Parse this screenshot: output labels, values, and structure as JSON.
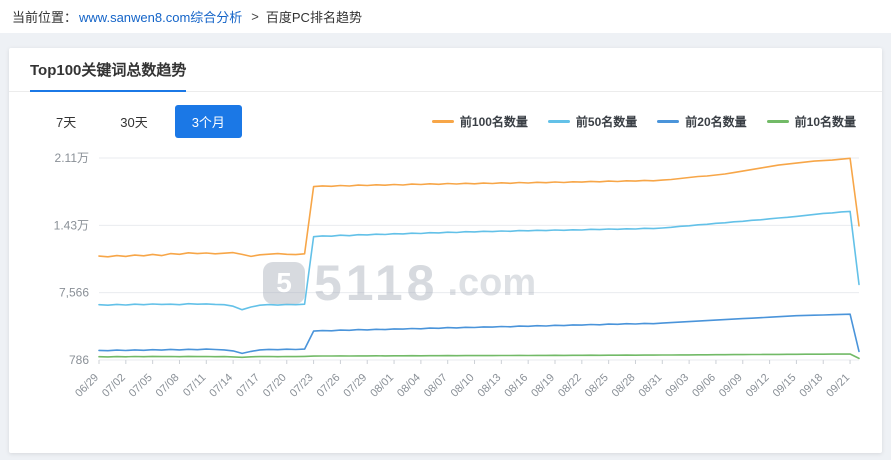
{
  "breadcrumb": {
    "prefix": "当前位置：",
    "link": "www.sanwen8.com综合分析",
    "link_color": "#1464c8",
    "separator": ">",
    "current": "百度PC排名趋势"
  },
  "card": {
    "title": "Top100关键词总数趋势",
    "accent_color": "#1b78e6",
    "tabs": [
      {
        "label": "7天",
        "active": false
      },
      {
        "label": "30天",
        "active": false
      },
      {
        "label": "3个月",
        "active": true
      }
    ]
  },
  "chart_data": {
    "type": "line",
    "title": "Top100关键词总数趋势",
    "grid": true,
    "legend_position": "top-right",
    "x_label_step": 3,
    "n_points": 86,
    "x_labels": [
      "06/29",
      "07/02",
      "07/05",
      "07/08",
      "07/11",
      "07/14",
      "07/17",
      "07/20",
      "07/23",
      "07/26",
      "07/29",
      "08/01",
      "08/04",
      "08/07",
      "08/10",
      "08/13",
      "08/16",
      "08/19",
      "08/22",
      "08/25",
      "08/28",
      "08/31",
      "09/03",
      "09/06",
      "09/09",
      "09/12",
      "09/15",
      "09/18",
      "09/21"
    ],
    "y_range": [
      786,
      21126
    ],
    "y_ticks": {
      "labels_top_down": [
        "2.11万",
        "1.43万",
        "7,566",
        "786"
      ],
      "values_top_down": [
        21126,
        14346,
        7566,
        786
      ]
    },
    "series": [
      {
        "name": "前100名数量",
        "color": "#f7a648",
        "values": [
          11250,
          11180,
          11300,
          11220,
          11350,
          11280,
          11420,
          11300,
          11500,
          11430,
          11580,
          11500,
          11560,
          11480,
          11540,
          11600,
          11420,
          11220,
          11380,
          11440,
          11500,
          11430,
          11400,
          11480,
          18250,
          18320,
          18280,
          18360,
          18310,
          18400,
          18360,
          18430,
          18390,
          18460,
          18410,
          18500,
          18460,
          18530,
          18480,
          18560,
          18510,
          18580,
          18530,
          18600,
          18560,
          18630,
          18580,
          18660,
          18610,
          18680,
          18640,
          18710,
          18660,
          18730,
          18700,
          18770,
          18730,
          18800,
          18760,
          18830,
          18800,
          18870,
          18830,
          18900,
          18960,
          19060,
          19160,
          19260,
          19310,
          19410,
          19510,
          19660,
          19810,
          19960,
          20110,
          20260,
          20410,
          20510,
          20610,
          20710,
          20810,
          20860,
          20910,
          21010,
          21100,
          14300
        ]
      },
      {
        "name": "前50名数量",
        "color": "#63c1e8",
        "values": [
          6350,
          6300,
          6380,
          6320,
          6400,
          6350,
          6420,
          6380,
          6400,
          6350,
          6450,
          6400,
          6430,
          6380,
          6350,
          6200,
          5850,
          6120,
          6300,
          6360,
          6310,
          6380,
          6350,
          6400,
          13200,
          13280,
          13250,
          13350,
          13300,
          13400,
          13380,
          13450,
          13420,
          13500,
          13480,
          13550,
          13520,
          13600,
          13580,
          13650,
          13620,
          13700,
          13680,
          13750,
          13720,
          13780,
          13750,
          13820,
          13800,
          13850,
          13820,
          13880,
          13850,
          13900,
          13880,
          13950,
          13920,
          13980,
          13950,
          14000,
          13980,
          14050,
          14020,
          14080,
          14150,
          14250,
          14300,
          14400,
          14450,
          14550,
          14600,
          14700,
          14750,
          14850,
          14900,
          15000,
          15080,
          15150,
          15250,
          15350,
          15450,
          15550,
          15600,
          15700,
          15750,
          8400
        ]
      },
      {
        "name": "前20名数量",
        "color": "#4a94da",
        "values": [
          1750,
          1720,
          1780,
          1740,
          1800,
          1760,
          1820,
          1780,
          1850,
          1800,
          1860,
          1820,
          1880,
          1840,
          1800,
          1700,
          1450,
          1650,
          1800,
          1850,
          1820,
          1870,
          1840,
          1880,
          3700,
          3750,
          3730,
          3800,
          3780,
          3850,
          3820,
          3880,
          3850,
          3920,
          3900,
          3960,
          3930,
          4000,
          3980,
          4050,
          4020,
          4080,
          4060,
          4120,
          4100,
          4160,
          4130,
          4200,
          4180,
          4240,
          4210,
          4280,
          4250,
          4320,
          4300,
          4360,
          4330,
          4400,
          4380,
          4440,
          4410,
          4470,
          4440,
          4500,
          4550,
          4600,
          4650,
          4700,
          4750,
          4800,
          4850,
          4900,
          4950,
          5000,
          5050,
          5100,
          5150,
          5200,
          5250,
          5280,
          5300,
          5320,
          5350,
          5380,
          5400,
          1650
        ]
      },
      {
        "name": "前10名数量",
        "color": "#72ba67",
        "values": [
          1120,
          1100,
          1130,
          1110,
          1140,
          1120,
          1150,
          1130,
          1140,
          1120,
          1150,
          1130,
          1140,
          1120,
          1130,
          1100,
          1060,
          1110,
          1130,
          1140,
          1120,
          1140,
          1130,
          1150,
          1180,
          1190,
          1185,
          1195,
          1190,
          1200,
          1195,
          1205,
          1200,
          1210,
          1205,
          1215,
          1210,
          1220,
          1215,
          1225,
          1220,
          1230,
          1225,
          1235,
          1230,
          1240,
          1235,
          1245,
          1240,
          1250,
          1245,
          1255,
          1250,
          1260,
          1255,
          1265,
          1260,
          1270,
          1265,
          1275,
          1270,
          1280,
          1275,
          1285,
          1290,
          1295,
          1300,
          1305,
          1310,
          1315,
          1320,
          1325,
          1330,
          1335,
          1340,
          1345,
          1350,
          1355,
          1360,
          1365,
          1370,
          1375,
          1380,
          1385,
          1390,
          950
        ]
      }
    ],
    "watermark": {
      "logo_glyph": "5",
      "text_main": "5118",
      "text_suffix": ".com"
    }
  }
}
